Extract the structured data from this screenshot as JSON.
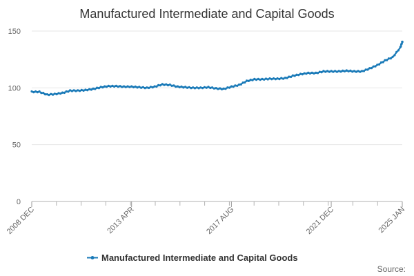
{
  "chart_data": {
    "type": "line",
    "title": "Manufactured Intermediate and Capital Goods",
    "xlabel": "",
    "ylabel": "",
    "ylim": [
      0,
      150
    ],
    "yticks": [
      0,
      50,
      100,
      150
    ],
    "grid": true,
    "legend": "bottom",
    "x_tick_labels": [
      "2008 DEC",
      "2013 APR",
      "2017 AUG",
      "2021 DEC",
      "2025 JAN"
    ],
    "x_tick_dates": [
      "2008-12",
      "2013-04",
      "2017-08",
      "2021-12",
      "2025-01"
    ],
    "x_range": [
      "2008-12",
      "2025-01"
    ],
    "series": [
      {
        "name": "Manufactured Intermediate and Capital Goods",
        "color": "#1a7ab8",
        "points": [
          [
            "2008-12",
            96.5
          ],
          [
            "2009-04",
            96.5
          ],
          [
            "2009-08",
            94.0
          ],
          [
            "2009-12",
            94.5
          ],
          [
            "2010-04",
            95.5
          ],
          [
            "2010-08",
            97.5
          ],
          [
            "2010-12",
            97.5
          ],
          [
            "2011-04",
            98.0
          ],
          [
            "2011-08",
            99.0
          ],
          [
            "2011-12",
            100.5
          ],
          [
            "2012-04",
            101.5
          ],
          [
            "2012-08",
            101.5
          ],
          [
            "2012-12",
            101.0
          ],
          [
            "2013-04",
            101.0
          ],
          [
            "2013-08",
            100.5
          ],
          [
            "2013-12",
            100.0
          ],
          [
            "2014-04",
            101.0
          ],
          [
            "2014-08",
            103.0
          ],
          [
            "2014-12",
            102.5
          ],
          [
            "2015-04",
            101.0
          ],
          [
            "2015-08",
            100.5
          ],
          [
            "2015-12",
            100.0
          ],
          [
            "2016-04",
            100.0
          ],
          [
            "2016-08",
            100.5
          ],
          [
            "2016-12",
            99.5
          ],
          [
            "2017-04",
            99.0
          ],
          [
            "2017-08",
            101.0
          ],
          [
            "2017-12",
            102.5
          ],
          [
            "2018-04",
            106.0
          ],
          [
            "2018-08",
            107.5
          ],
          [
            "2018-12",
            107.5
          ],
          [
            "2019-04",
            108.0
          ],
          [
            "2019-08",
            108.0
          ],
          [
            "2019-12",
            108.5
          ],
          [
            "2020-04",
            110.5
          ],
          [
            "2020-08",
            112.0
          ],
          [
            "2020-12",
            113.0
          ],
          [
            "2021-04",
            113.0
          ],
          [
            "2021-08",
            114.5
          ],
          [
            "2021-12",
            114.5
          ],
          [
            "2022-04",
            114.5
          ],
          [
            "2022-08",
            115.0
          ],
          [
            "2022-12",
            114.5
          ],
          [
            "2023-04",
            114.5
          ],
          [
            "2023-08",
            117.0
          ],
          [
            "2023-12",
            120.0
          ],
          [
            "2024-04",
            124.0
          ],
          [
            "2024-08",
            127.0
          ],
          [
            "2024-12",
            135.5
          ],
          [
            "2025-01",
            140.5
          ]
        ]
      }
    ]
  },
  "source_label": "Source:"
}
